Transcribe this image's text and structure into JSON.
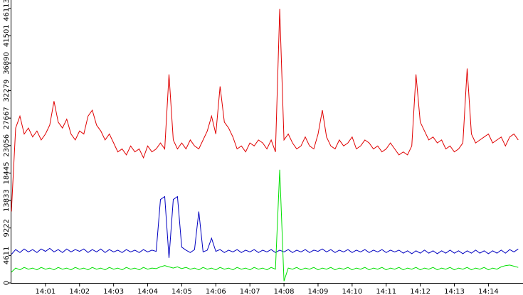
{
  "chart_data": {
    "type": "line",
    "x": [
      0,
      0.125,
      0.25,
      0.375,
      0.5,
      0.625,
      0.75,
      0.875,
      1,
      1.125,
      1.25,
      1.375,
      1.5,
      1.625,
      1.75,
      1.875,
      2,
      2.125,
      2.25,
      2.375,
      2.5,
      2.625,
      2.75,
      2.875,
      3,
      3.125,
      3.25,
      3.375,
      3.5,
      3.625,
      3.75,
      3.875,
      4,
      4.125,
      4.25,
      4.375,
      4.5,
      4.625,
      4.75,
      4.875,
      5,
      5.125,
      5.25,
      5.375,
      5.5,
      5.625,
      5.75,
      5.875,
      6,
      6.125,
      6.25,
      6.375,
      6.5,
      6.625,
      6.75,
      6.875,
      7,
      7.125,
      7.25,
      7.375,
      7.5,
      7.625,
      7.75,
      7.875,
      8,
      8.125,
      8.25,
      8.375,
      8.5,
      8.625,
      8.75,
      8.875,
      9,
      9.125,
      9.25,
      9.375,
      9.5,
      9.625,
      9.75,
      9.875,
      10,
      10.125,
      10.25,
      10.375,
      10.5,
      10.625,
      10.75,
      10.875,
      11,
      11.125,
      11.25,
      11.375,
      11.5,
      11.625,
      11.75,
      11.875,
      12,
      12.125,
      12.25,
      12.375,
      12.5,
      12.625,
      12.75,
      12.875,
      13,
      13.125,
      13.25,
      13.375,
      13.5,
      13.625,
      13.75,
      13.875,
      14,
      14.125,
      14.25,
      14.375,
      14.5,
      14.625,
      14.75,
      14.875
    ],
    "series": [
      {
        "color": "#e00000",
        "values": [
          12000,
          26000,
          28000,
          25000,
          26000,
          24500,
          25500,
          24000,
          25000,
          26500,
          30500,
          27000,
          26000,
          27500,
          25000,
          24000,
          25500,
          25000,
          28000,
          29000,
          26500,
          25500,
          24000,
          25000,
          23500,
          22000,
          22500,
          21500,
          23000,
          22000,
          22500,
          21000,
          23000,
          22000,
          22500,
          23500,
          22500,
          35000,
          24000,
          22500,
          23500,
          22500,
          24000,
          23000,
          22500,
          24000,
          25500,
          28000,
          25000,
          33000,
          27000,
          26000,
          24500,
          22500,
          23000,
          22000,
          23500,
          23000,
          24000,
          23500,
          22500,
          24000,
          22000,
          46000,
          24000,
          25000,
          23500,
          22500,
          23000,
          24500,
          23000,
          22500,
          25000,
          29000,
          24500,
          23000,
          22500,
          24000,
          23000,
          23500,
          24500,
          22500,
          23000,
          24000,
          23500,
          22500,
          23000,
          22000,
          22500,
          23500,
          22500,
          21500,
          22000,
          21500,
          23000,
          35000,
          27000,
          25500,
          24000,
          24500,
          23500,
          24000,
          22500,
          23000,
          22000,
          22500,
          23500,
          36000,
          25000,
          23500,
          24000,
          24500,
          25000,
          23500,
          24000,
          24500,
          23000,
          24500,
          25000,
          24000
        ]
      },
      {
        "color": "#0000c0",
        "values": [
          4800,
          5600,
          5100,
          5700,
          5200,
          5600,
          5100,
          5700,
          5300,
          5800,
          5200,
          5600,
          5100,
          5700,
          5200,
          5600,
          5300,
          5700,
          5100,
          5600,
          5200,
          5700,
          5100,
          5600,
          5200,
          5500,
          5100,
          5600,
          5200,
          5500,
          5100,
          5600,
          5200,
          5500,
          5300,
          14000,
          14500,
          4200,
          14000,
          14500,
          6000,
          5500,
          5100,
          5600,
          12000,
          5200,
          5500,
          7500,
          5300,
          5600,
          5100,
          5500,
          5200,
          5600,
          5100,
          5500,
          5200,
          5600,
          5100,
          5500,
          5200,
          5600,
          5100,
          5500,
          5200,
          5600,
          5100,
          5500,
          5200,
          5600,
          5100,
          5500,
          5300,
          5700,
          5200,
          5600,
          5100,
          5500,
          5200,
          5600,
          5100,
          5500,
          5200,
          5600,
          5100,
          5500,
          5200,
          5600,
          5100,
          5500,
          5200,
          5500,
          5000,
          5400,
          4900,
          5400,
          5000,
          5500,
          5000,
          5400,
          4900,
          5400,
          5000,
          5500,
          5000,
          5400,
          4900,
          5400,
          5000,
          5500,
          5000,
          5400,
          4900,
          5400,
          5000,
          5500,
          5000,
          5600,
          5200,
          5700
        ]
      },
      {
        "color": "#00e000",
        "values": [
          1800,
          2500,
          2200,
          2600,
          2300,
          2500,
          2200,
          2600,
          2300,
          2500,
          2200,
          2600,
          2300,
          2500,
          2200,
          2600,
          2300,
          2500,
          2200,
          2600,
          2300,
          2500,
          2200,
          2600,
          2300,
          2500,
          2200,
          2600,
          2300,
          2500,
          2200,
          2600,
          2300,
          2500,
          2400,
          2700,
          2900,
          2700,
          2500,
          2700,
          2400,
          2600,
          2300,
          2500,
          2200,
          2600,
          2300,
          2500,
          2200,
          2600,
          2300,
          2500,
          2200,
          2600,
          2300,
          2500,
          2200,
          2600,
          2300,
          2500,
          2200,
          2600,
          2300,
          19000,
          300,
          2500,
          2300,
          2600,
          2200,
          2500,
          2300,
          2600,
          2200,
          2500,
          2300,
          2600,
          2200,
          2500,
          2300,
          2600,
          2200,
          2500,
          2300,
          2600,
          2200,
          2500,
          2300,
          2600,
          2200,
          2500,
          2300,
          2600,
          2200,
          2500,
          2300,
          2600,
          2200,
          2500,
          2300,
          2600,
          2200,
          2500,
          2300,
          2600,
          2200,
          2500,
          2300,
          2600,
          2200,
          2500,
          2300,
          2600,
          2200,
          2500,
          2300,
          2700,
          2900,
          3000,
          2800,
          2600
        ]
      }
    ],
    "xlim": [
      0,
      15.015
    ],
    "xticks": [
      {
        "value": 1,
        "label": "14:01"
      },
      {
        "value": 2,
        "label": "14:02"
      },
      {
        "value": 3,
        "label": "14:03"
      },
      {
        "value": 4,
        "label": "14:04"
      },
      {
        "value": 5,
        "label": "14:05"
      },
      {
        "value": 6,
        "label": "14:06"
      },
      {
        "value": 7,
        "label": "14:07"
      },
      {
        "value": 8,
        "label": "14:08"
      },
      {
        "value": 9,
        "label": "14:09"
      },
      {
        "value": 10,
        "label": "14:10"
      },
      {
        "value": 11,
        "label": "14:11"
      },
      {
        "value": 12,
        "label": "14:12"
      },
      {
        "value": 13,
        "label": "14:13"
      },
      {
        "value": 14,
        "label": "14:14"
      }
    ],
    "ylim": [
      0,
      47500
    ],
    "yticks": [
      0,
      4611,
      9222,
      13833,
      18445,
      23056,
      27667,
      32279,
      36890,
      41501,
      46113
    ]
  }
}
